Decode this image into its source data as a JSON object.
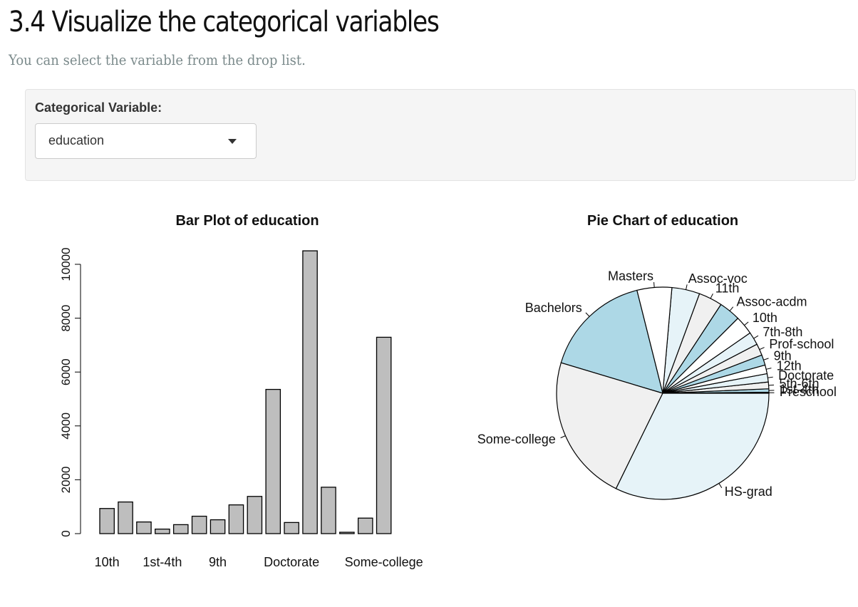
{
  "header": {
    "title": "3.4 Visualize the categorical variables",
    "subtitle": "You can select the variable from the drop list."
  },
  "control": {
    "label": "Categorical Variable:",
    "selected": "education"
  },
  "colors": {
    "bar_fill": "#bebebe",
    "pie_palette": [
      "#ffffff",
      "#add8e6",
      "#f0f0f0",
      "#e6f3f8"
    ]
  },
  "chart_data": [
    {
      "type": "bar",
      "title": "Bar Plot of education",
      "categories": [
        "10th",
        "11th",
        "12th",
        "1st-4th",
        "5th-6th",
        "7th-8th",
        "9th",
        "Assoc-acdm",
        "Assoc-voc",
        "Bachelors",
        "Doctorate",
        "HS-grad",
        "Masters",
        "Preschool",
        "Prof-school",
        "Some-college"
      ],
      "values": [
        933,
        1175,
        433,
        168,
        333,
        646,
        514,
        1067,
        1382,
        5355,
        413,
        10501,
        1723,
        51,
        576,
        7291
      ],
      "x_tick_labels": [
        "10th",
        "1st-4th",
        "9th",
        "Doctorate",
        "Some-college"
      ],
      "y_ticks": [
        0,
        2000,
        4000,
        6000,
        8000,
        10000
      ],
      "ylim": [
        0,
        10500
      ],
      "grid": false
    },
    {
      "type": "pie",
      "title": "Pie Chart of education",
      "labels": [
        "10th",
        "11th",
        "12th",
        "1st-4th",
        "5th-6th",
        "7th-8th",
        "9th",
        "Assoc-acdm",
        "Assoc-voc",
        "Bachelors",
        "Doctorate",
        "HS-grad",
        "Masters",
        "Preschool",
        "Prof-school",
        "Some-college"
      ],
      "values": [
        933,
        1175,
        433,
        168,
        333,
        646,
        514,
        1067,
        1382,
        5355,
        413,
        10501,
        1723,
        51,
        576,
        7291
      ],
      "label_order_note": "",
      "display_order": [
        "Preschool",
        "1st-4th",
        "5th-6th",
        "Doctorate",
        "12th",
        "9th",
        "Prof-school",
        "7th-8th",
        "10th",
        "Assoc-acdm",
        "11th",
        "Assoc-voc",
        "Masters",
        "Bachelors",
        "Some-college",
        "HS-grad"
      ]
    }
  ]
}
